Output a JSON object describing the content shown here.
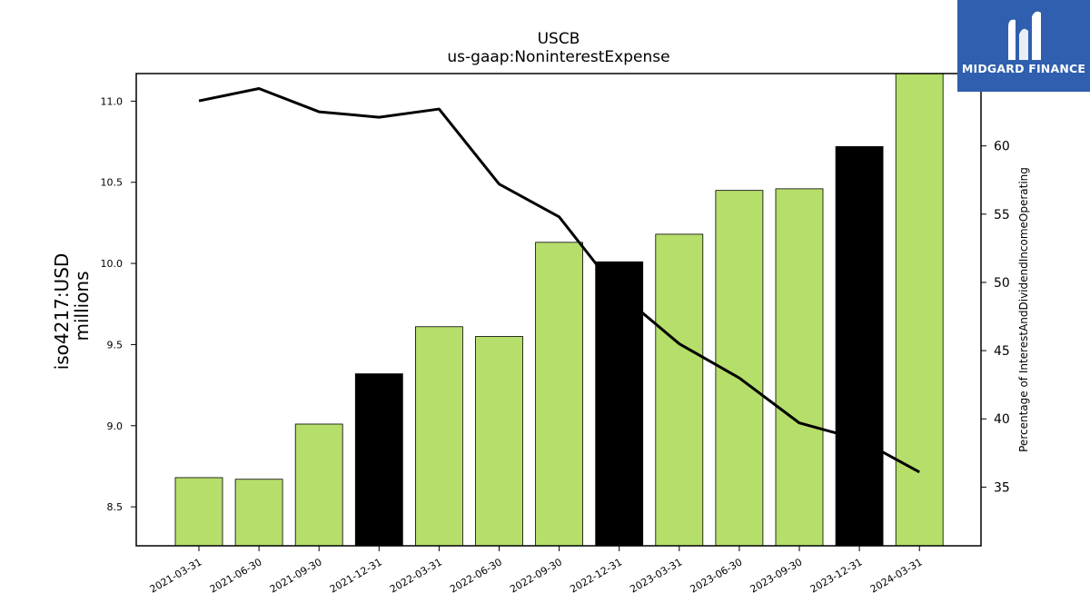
{
  "logo": {
    "text": "MIDGARD FINANCE",
    "color": "#2f5fae"
  },
  "chart_data": {
    "type": "bar",
    "title": "USCB",
    "subtitle": "us-gaap:NoninterestExpense",
    "ylabel_line1": "iso4217:USD",
    "ylabel_line2": "millions",
    "y2label": "Percentage of InterestAndDividendIncomeOperating",
    "categories": [
      "2021-03-31",
      "2021-06-30",
      "2021-09-30",
      "2021-12-31",
      "2022-03-31",
      "2022-06-30",
      "2022-09-30",
      "2022-12-31",
      "2023-03-31",
      "2023-06-30",
      "2023-09-30",
      "2023-12-31",
      "2024-03-31"
    ],
    "values": [
      8.68,
      8.67,
      9.01,
      9.32,
      9.61,
      9.55,
      10.13,
      10.01,
      10.18,
      10.45,
      10.46,
      10.72,
      11.2
    ],
    "bar_colors": [
      "#b5de6b",
      "#b5de6b",
      "#b5de6b",
      "#000000",
      "#b5de6b",
      "#b5de6b",
      "#b5de6b",
      "#000000",
      "#b5de6b",
      "#b5de6b",
      "#b5de6b",
      "#000000",
      "#b5de6b"
    ],
    "ylim": [
      8.26,
      11.17
    ],
    "yticks": [
      8.5,
      9.0,
      9.5,
      10.0,
      10.5,
      11.0
    ],
    "yticklabels": [
      "8.5",
      "9.0",
      "9.5",
      "10.0",
      "10.5",
      "11.0"
    ],
    "line": {
      "values": [
        63.3,
        64.2,
        62.5,
        62.1,
        62.7,
        57.2,
        54.8,
        49.2,
        45.5,
        43.0,
        39.7,
        38.5,
        36.1
      ],
      "color": "#000000"
    },
    "y2lim": [
      30.7,
      65.3
    ],
    "y2ticks": [
      35,
      40,
      45,
      50,
      55,
      60
    ],
    "y2ticklabels": [
      "35",
      "40",
      "45",
      "50",
      "55",
      "60"
    ],
    "grid": false
  }
}
